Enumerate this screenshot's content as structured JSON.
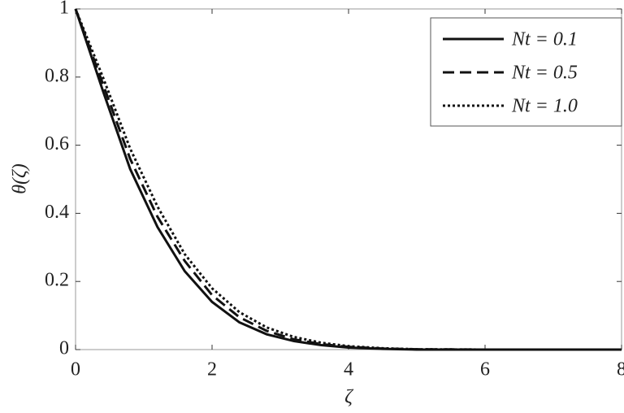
{
  "chart_data": {
    "type": "line",
    "x_label": "ζ",
    "y_label": "θ(ζ)",
    "x": [
      0,
      0.4,
      0.8,
      1.2,
      1.6,
      2.0,
      2.4,
      2.8,
      3.2,
      3.6,
      4.0,
      4.5,
      5,
      6,
      7,
      8
    ],
    "series": [
      {
        "name": "Nt = 0.1",
        "color": "#111111",
        "dash": "solid",
        "values": [
          1,
          0.76,
          0.53,
          0.36,
          0.23,
          0.14,
          0.08,
          0.045,
          0.025,
          0.013,
          0.006,
          0.002,
          0,
          0,
          0,
          0
        ]
      },
      {
        "name": "Nt = 0.5",
        "color": "#111111",
        "dash": "dashed",
        "values": [
          1,
          0.78,
          0.56,
          0.39,
          0.26,
          0.16,
          0.095,
          0.055,
          0.03,
          0.016,
          0.008,
          0.003,
          0.001,
          0,
          0,
          0
        ]
      },
      {
        "name": "Nt = 1.0",
        "color": "#111111",
        "dash": "dotted",
        "values": [
          1,
          0.8,
          0.59,
          0.42,
          0.28,
          0.18,
          0.11,
          0.065,
          0.037,
          0.02,
          0.01,
          0.004,
          0.001,
          0,
          0,
          0
        ]
      }
    ],
    "xlim": [
      0,
      8
    ],
    "xticks": [
      0,
      2,
      4,
      6,
      8
    ],
    "ylim": [
      0,
      1
    ],
    "yticks": [
      0,
      0.2,
      0.4,
      0.6,
      0.8,
      1
    ],
    "grid": false,
    "legend": "upper right"
  }
}
